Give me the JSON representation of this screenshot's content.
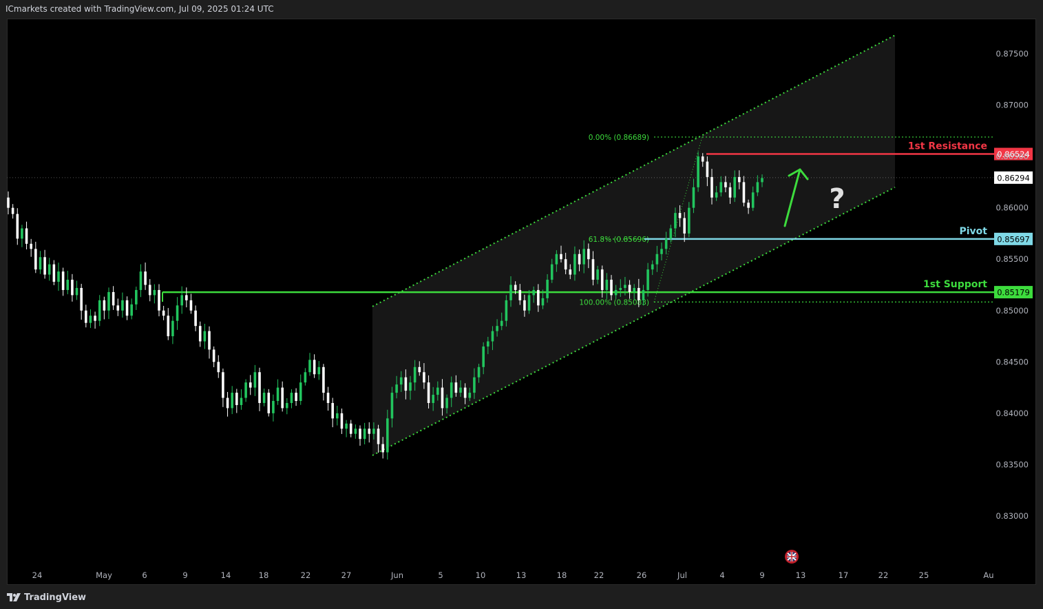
{
  "header": {
    "attribution": "ICmarkets created with TradingView.com, Jul 09, 2025 01:24 UTC"
  },
  "footer": {
    "brand": "TradingView"
  },
  "colors": {
    "background": "#000000",
    "up": "#22c55e",
    "down": "#ffffff",
    "resistance": "#f23645",
    "support": "#3ddc3d",
    "pivot": "#7fd8e6",
    "channel": "#3ddc3d",
    "arrow": "#3ddc3d",
    "question": "#e0e0e0"
  },
  "chart_data": {
    "type": "candlestick",
    "instrument": "",
    "ylim": [
      0.8265,
      0.8773
    ],
    "y_ticks": [
      "0.87500",
      "0.87000",
      "0.86500",
      "0.86000",
      "0.85500",
      "0.85000",
      "0.84500",
      "0.84000",
      "0.83500",
      "0.83000"
    ],
    "x_ticks": [
      "24",
      "May",
      "6",
      "9",
      "14",
      "18",
      "22",
      "27",
      "Jun",
      "5",
      "10",
      "13",
      "18",
      "22",
      "26",
      "Jul",
      "4",
      "9",
      "13",
      "17",
      "22",
      "25",
      "Au"
    ],
    "current_price": "0.86294",
    "levels": [
      {
        "name": "1st Resistance",
        "price": 0.86524,
        "label": "0.86524",
        "role": "resistance"
      },
      {
        "name": "Pivot",
        "price": 0.85697,
        "label": "0.85697",
        "role": "pivot"
      },
      {
        "name": "1st Support",
        "price": 0.85179,
        "label": "0.85179",
        "role": "support"
      }
    ],
    "fibonacci": [
      {
        "label": "0.00% (0.86689)",
        "price": 0.86689
      },
      {
        "label": "61.8% (0.85696)",
        "price": 0.85696
      },
      {
        "label": "100.00% (0.85083)",
        "price": 0.85083
      }
    ],
    "channel": {
      "start_date": "May 29",
      "end_date": "Jul 22",
      "lower_start": 0.8359,
      "lower_end": 0.862,
      "upper_start": 0.8504,
      "upper_end": 0.8768
    },
    "annotations": [
      {
        "type": "arrow",
        "direction": "up"
      },
      {
        "type": "text",
        "text": "?"
      }
    ],
    "closes": [
      0.86,
      0.8594,
      0.857,
      0.858,
      0.8565,
      0.856,
      0.854,
      0.8552,
      0.8535,
      0.8545,
      0.8528,
      0.8538,
      0.852,
      0.853,
      0.8515,
      0.8522,
      0.85,
      0.8488,
      0.8495,
      0.849,
      0.851,
      0.85,
      0.8518,
      0.8505,
      0.85,
      0.851,
      0.8495,
      0.8506,
      0.852,
      0.8538,
      0.8525,
      0.8515,
      0.852,
      0.85,
      0.8495,
      0.8475,
      0.849,
      0.8505,
      0.8515,
      0.851,
      0.85,
      0.8485,
      0.847,
      0.848,
      0.8462,
      0.845,
      0.844,
      0.8415,
      0.8405,
      0.842,
      0.8408,
      0.8415,
      0.843,
      0.8425,
      0.844,
      0.841,
      0.842,
      0.84,
      0.8412,
      0.8425,
      0.8405,
      0.841,
      0.842,
      0.8412,
      0.843,
      0.844,
      0.8452,
      0.8438,
      0.8445,
      0.842,
      0.841,
      0.8395,
      0.84,
      0.8385,
      0.839,
      0.838,
      0.8385,
      0.8375,
      0.8385,
      0.838,
      0.8385,
      0.837,
      0.8362,
      0.8395,
      0.842,
      0.8428,
      0.8435,
      0.8422,
      0.843,
      0.8445,
      0.844,
      0.843,
      0.841,
      0.8418,
      0.8425,
      0.8405,
      0.8415,
      0.843,
      0.842,
      0.8425,
      0.8415,
      0.842,
      0.8435,
      0.8445,
      0.8465,
      0.847,
      0.848,
      0.8485,
      0.849,
      0.851,
      0.8525,
      0.852,
      0.851,
      0.85,
      0.8515,
      0.852,
      0.8505,
      0.8512,
      0.853,
      0.8545,
      0.8555,
      0.855,
      0.854,
      0.8535,
      0.8555,
      0.8545,
      0.856,
      0.855,
      0.853,
      0.854,
      0.852,
      0.853,
      0.8515,
      0.852,
      0.8522,
      0.8525,
      0.8518,
      0.8522,
      0.851,
      0.852,
      0.854,
      0.8545,
      0.8555,
      0.856,
      0.857,
      0.858,
      0.8595,
      0.859,
      0.8575,
      0.86,
      0.862,
      0.865,
      0.8645,
      0.863,
      0.861,
      0.8615,
      0.8625,
      0.862,
      0.861,
      0.863,
      0.8625,
      0.8605,
      0.86,
      0.8615,
      0.8625,
      0.8629
    ]
  }
}
